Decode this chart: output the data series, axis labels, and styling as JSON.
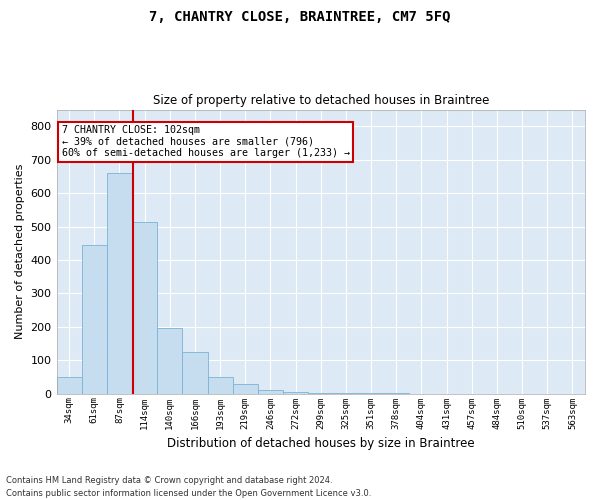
{
  "title": "7, CHANTRY CLOSE, BRAINTREE, CM7 5FQ",
  "subtitle": "Size of property relative to detached houses in Braintree",
  "xlabel": "Distribution of detached houses by size in Braintree",
  "ylabel": "Number of detached properties",
  "bar_labels": [
    "34sqm",
    "61sqm",
    "87sqm",
    "114sqm",
    "140sqm",
    "166sqm",
    "193sqm",
    "219sqm",
    "246sqm",
    "272sqm",
    "299sqm",
    "325sqm",
    "351sqm",
    "378sqm",
    "404sqm",
    "431sqm",
    "457sqm",
    "484sqm",
    "510sqm",
    "537sqm",
    "563sqm"
  ],
  "bar_values": [
    50,
    445,
    660,
    515,
    195,
    125,
    50,
    28,
    10,
    5,
    2,
    3,
    2,
    1,
    0,
    0,
    0,
    0,
    0,
    0,
    0
  ],
  "bar_color": "#c6dcef",
  "bar_edge_color": "#7bb3d6",
  "vline_color": "#cc0000",
  "annotation_text": "7 CHANTRY CLOSE: 102sqm\n← 39% of detached houses are smaller (796)\n60% of semi-detached houses are larger (1,233) →",
  "annotation_box_color": "#ffffff",
  "annotation_box_edge": "#cc0000",
  "ylim": [
    0,
    850
  ],
  "yticks": [
    0,
    100,
    200,
    300,
    400,
    500,
    600,
    700,
    800
  ],
  "bg_color": "#ddeaf6",
  "grid_color": "#ffffff",
  "footer1": "Contains HM Land Registry data © Crown copyright and database right 2024.",
  "footer2": "Contains public sector information licensed under the Open Government Licence v3.0."
}
